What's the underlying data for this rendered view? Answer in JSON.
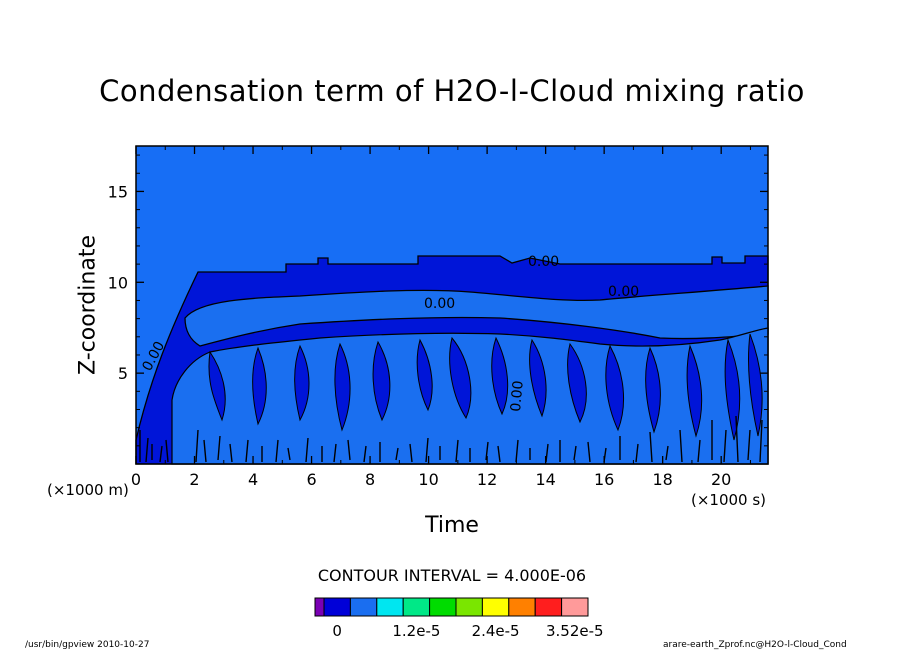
{
  "chart_data": {
    "type": "contour",
    "title": "Condensation term of H2O-l-Cloud mixing ratio",
    "xlabel": "Time",
    "ylabel": "Z-coordinate",
    "x_unit": "(×1000 s)",
    "y_unit": "(×1000 m)",
    "xlim": [
      0,
      21.6
    ],
    "ylim": [
      0,
      17.5
    ],
    "x_ticks": [
      0,
      2,
      4,
      6,
      8,
      10,
      12,
      14,
      16,
      18,
      20
    ],
    "y_ticks": [
      5,
      10,
      15
    ],
    "contour_labels": [
      "0.00",
      "0.00",
      "0.00",
      "0.00",
      "0.00"
    ],
    "contour_interval_text": "CONTOUR INTERVAL = 4.000E-06",
    "colorbar": {
      "colors": [
        "#7a00b4",
        "#0000d8",
        "#1a6ef0",
        "#00e6f0",
        "#00e887",
        "#00dc00",
        "#7ae600",
        "#ffff00",
        "#ff8000",
        "#ff1e1e",
        "#ff9a9a"
      ],
      "labels": [
        "0",
        "1.2e-5",
        "2.4e-5",
        "3.52e-5"
      ],
      "label_color_index": [
        1.5,
        4.5,
        7.5,
        10.5
      ]
    },
    "colors": {
      "background_field": "#1368ee",
      "upper_field": "#176ef5",
      "cloud_layer": "#0015d8",
      "mid_field": "#1a6ff0"
    }
  },
  "footer": {
    "left": "/usr/bin/gpview   2010-10-27",
    "right": "arare-earth_Zprof.nc@H2O-l-Cloud_Cond"
  }
}
